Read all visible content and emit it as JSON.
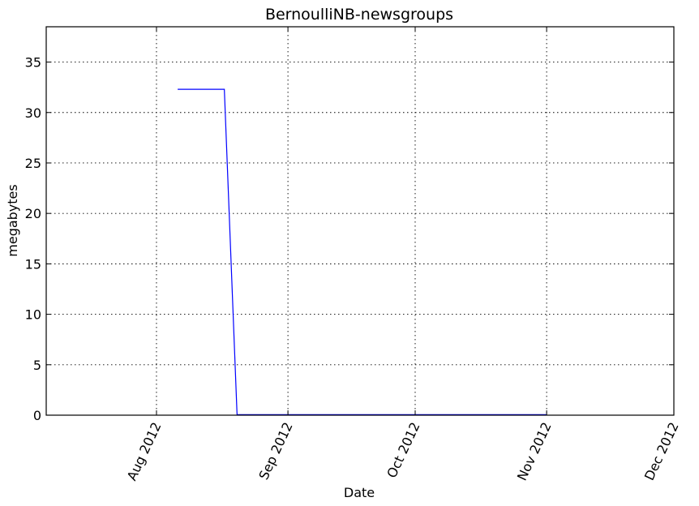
{
  "chart_data": {
    "type": "line",
    "title": "BernoulliNB-newsgroups",
    "xlabel": "Date",
    "ylabel": "megabytes",
    "xlim": [
      "2012-07-06",
      "2012-12-01"
    ],
    "ylim": [
      0,
      38.5
    ],
    "x_ticks": [
      {
        "date": "2012-08-01",
        "label": "Aug 2012"
      },
      {
        "date": "2012-09-01",
        "label": "Sep 2012"
      },
      {
        "date": "2012-10-01",
        "label": "Oct 2012"
      },
      {
        "date": "2012-11-01",
        "label": "Nov 2012"
      },
      {
        "date": "2012-12-01",
        "label": "Dec 2012"
      }
    ],
    "y_ticks": [
      0,
      5,
      10,
      15,
      20,
      25,
      30,
      35
    ],
    "x_tick_rotation": 65,
    "grid": true,
    "series": [
      {
        "color": "#0000ff",
        "points": [
          {
            "x": "2012-08-06",
            "y": 32.3
          },
          {
            "x": "2012-08-17",
            "y": 32.3
          },
          {
            "x": "2012-08-20",
            "y": 0.05
          },
          {
            "x": "2012-11-01",
            "y": 0.05
          }
        ]
      }
    ]
  }
}
